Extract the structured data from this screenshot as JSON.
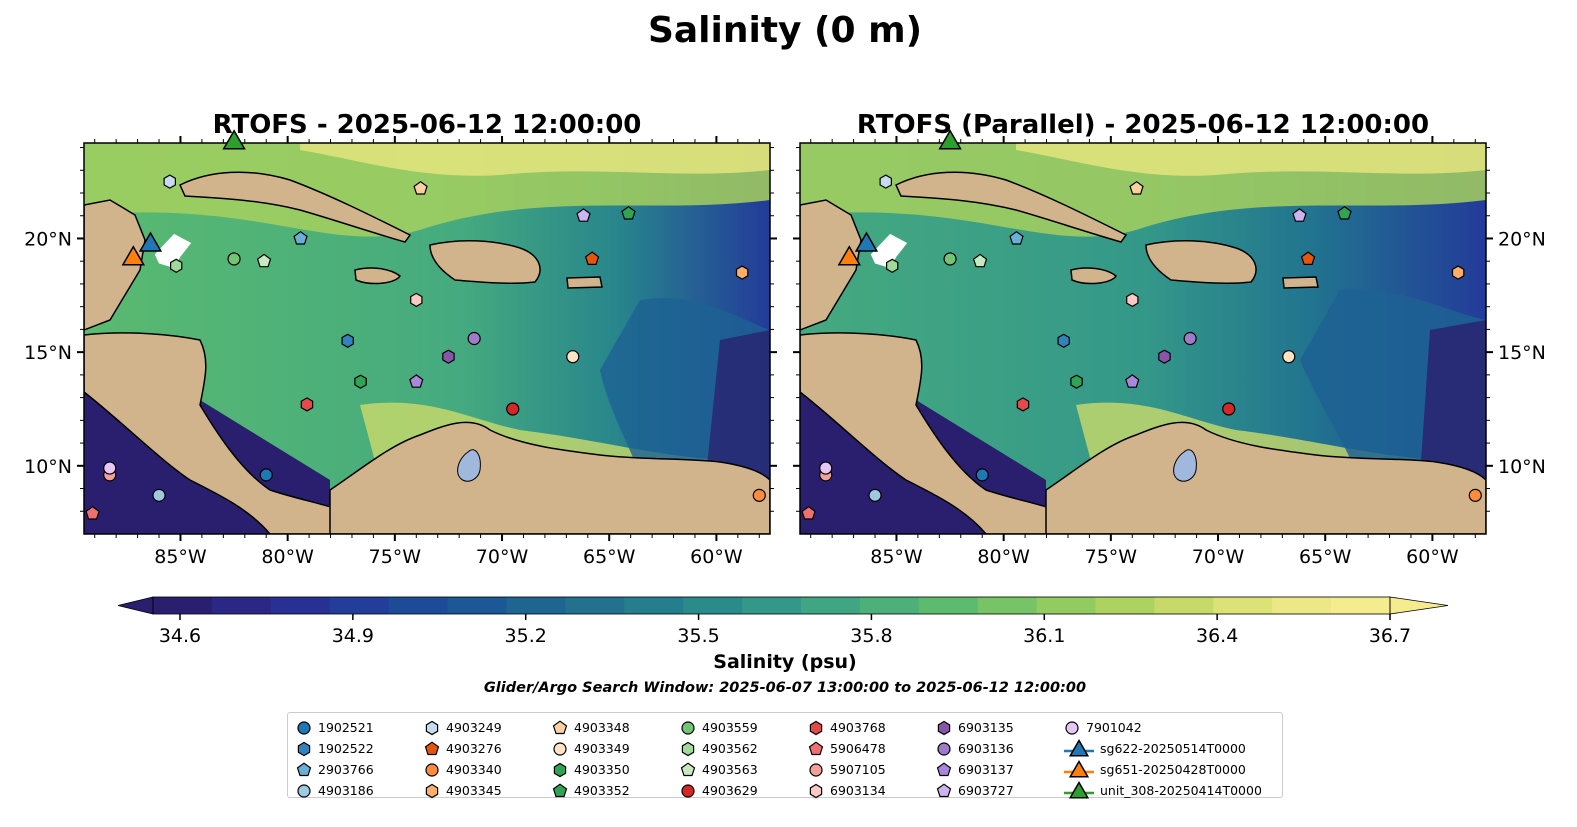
{
  "figure": {
    "title": "Salinity (0 m)",
    "left_panel_title": "RTOFS - 2025-06-12 12:00:00",
    "right_panel_title": "RTOFS (Parallel) - 2025-06-12 12:00:00",
    "colorbar_label": "Salinity (psu)",
    "search_window": "Glider/Argo Search Window: 2025-06-07 13:00:00 to 2025-06-12 12:00:00",
    "colorbar_ticks": [
      "34.6",
      "34.9",
      "35.2",
      "35.5",
      "35.8",
      "36.1",
      "36.4",
      "36.7"
    ],
    "lon_labels": [
      "85°W",
      "80°W",
      "75°W",
      "70°W",
      "65°W",
      "60°W"
    ],
    "lat_labels": [
      "20°N",
      "15°N",
      "10°N"
    ]
  },
  "colors": {
    "land": "#d2b48c",
    "lake": "#a0b8dc",
    "colormap": [
      "#2a1f6e",
      "#2b2a8e",
      "#233b9a",
      "#1c4f98",
      "#1d6193",
      "#21738f",
      "#27858c",
      "#349889",
      "#45aa7f",
      "#5aba70",
      "#7dc764",
      "#a6d05e",
      "#cbdb6a",
      "#e9e680",
      "#f5ec90"
    ]
  },
  "chart_data": {
    "type": "map",
    "variable": "Salinity",
    "units": "psu",
    "colorbar_range": [
      34.6,
      36.7
    ],
    "lon_range": [
      -89.5,
      -57.5
    ],
    "lat_range": [
      7,
      24.2
    ],
    "panels": [
      "RTOFS",
      "RTOFS (Parallel)"
    ],
    "observations": [
      {
        "id": "1902521",
        "marker": "circle",
        "color": "#1f77b4",
        "lon": -81,
        "lat": 9.6
      },
      {
        "id": "4903186",
        "marker": "circle",
        "color": "#9ecae1",
        "lon": -86,
        "lat": 8.7
      },
      {
        "id": "4903249",
        "marker": "hexagon",
        "color": "#c6dbef",
        "lon": -85.5,
        "lat": 22.5
      },
      {
        "id": "2903766",
        "marker": "pentagon",
        "color": "#6baed6",
        "lon": -79.4,
        "lat": 20
      },
      {
        "id": "1902522",
        "marker": "hexagon",
        "color": "#3182bd",
        "lon": -77.2,
        "lat": 15.5
      },
      {
        "id": "4903276",
        "marker": "pentagon",
        "color": "#e6550d",
        "lon": -65.8,
        "lat": 19.1
      },
      {
        "id": "4903340",
        "marker": "circle",
        "color": "#fd8d3c",
        "lon": -58,
        "lat": 8.7
      },
      {
        "id": "4903345",
        "marker": "hexagon",
        "color": "#fdae6b",
        "lon": -58.8,
        "lat": 18.5
      },
      {
        "id": "4903348",
        "marker": "pentagon",
        "color": "#fdd0a2",
        "lon": -73.8,
        "lat": 22.2
      },
      {
        "id": "4903349",
        "marker": "circle",
        "color": "#ffe4c4",
        "lon": -66.7,
        "lat": 14.8
      },
      {
        "id": "4903350",
        "marker": "hexagon",
        "color": "#31a354",
        "lon": -76.6,
        "lat": 13.7
      },
      {
        "id": "4903352",
        "marker": "pentagon",
        "color": "#31a354",
        "lon": -64.1,
        "lat": 21.1
      },
      {
        "id": "4903559",
        "marker": "circle",
        "color": "#74c476",
        "lon": -82.5,
        "lat": 19.1
      },
      {
        "id": "4903562",
        "marker": "hexagon",
        "color": "#a1d99b",
        "lon": -85.2,
        "lat": 18.8
      },
      {
        "id": "4903563",
        "marker": "pentagon",
        "color": "#c7e9c0",
        "lon": -81.1,
        "lat": 19
      },
      {
        "id": "4903629",
        "marker": "circle",
        "color": "#d62728",
        "lon": -69.5,
        "lat": 12.5
      },
      {
        "id": "4903768",
        "marker": "hexagon",
        "color": "#e34a4a",
        "lon": -79.1,
        "lat": 12.7
      },
      {
        "id": "5906478",
        "marker": "pentagon",
        "color": "#f07070",
        "lon": -89.1,
        "lat": 7.9
      },
      {
        "id": "5907105",
        "marker": "circle",
        "color": "#f4a09a",
        "lon": -88.3,
        "lat": 9.6
      },
      {
        "id": "6903134",
        "marker": "hexagon",
        "color": "#f9c9c3",
        "lon": -74,
        "lat": 17.3
      },
      {
        "id": "6903135",
        "marker": "hexagon",
        "color": "#8856a7",
        "lon": -72.5,
        "lat": 14.8
      },
      {
        "id": "6903136",
        "marker": "circle",
        "color": "#9e7cc9",
        "lon": -71.3,
        "lat": 15.6
      },
      {
        "id": "6903137",
        "marker": "pentagon",
        "color": "#a987dc",
        "lon": -74,
        "lat": 13.7
      },
      {
        "id": "6903727",
        "marker": "pentagon",
        "color": "#cbb4f0",
        "lon": -66.2,
        "lat": 21
      },
      {
        "id": "7901042",
        "marker": "circle",
        "color": "#e5c6f5",
        "lon": -88.3,
        "lat": 9.9
      },
      {
        "id": "sg622-20250514T0000",
        "marker": "triangle",
        "color": "#1f77b4",
        "lon": -86.4,
        "lat": 19.8
      },
      {
        "id": "sg651-20250428T0000",
        "marker": "triangle",
        "color": "#ff7f0e",
        "lon": -87.2,
        "lat": 19.2
      },
      {
        "id": "unit_308-20250414T0000",
        "marker": "triangle",
        "color": "#2ca02c",
        "lon": -82.5,
        "lat": 24.3
      }
    ]
  },
  "legend": {
    "items": [
      {
        "label": "1902521",
        "marker": "circle",
        "color": "#1f77b4"
      },
      {
        "label": "1902522",
        "marker": "hexagon",
        "color": "#3182bd"
      },
      {
        "label": "2903766",
        "marker": "pentagon",
        "color": "#6baed6"
      },
      {
        "label": "4903186",
        "marker": "circle",
        "color": "#9ecae1"
      },
      {
        "label": "4903249",
        "marker": "hexagon",
        "color": "#c6dbef"
      },
      {
        "label": "4903276",
        "marker": "pentagon",
        "color": "#e6550d"
      },
      {
        "label": "4903340",
        "marker": "circle",
        "color": "#fd8d3c"
      },
      {
        "label": "4903345",
        "marker": "hexagon",
        "color": "#fdae6b"
      },
      {
        "label": "4903348",
        "marker": "pentagon",
        "color": "#fdd0a2"
      },
      {
        "label": "4903349",
        "marker": "circle",
        "color": "#ffe4c4"
      },
      {
        "label": "4903350",
        "marker": "hexagon",
        "color": "#31a354"
      },
      {
        "label": "4903352",
        "marker": "pentagon",
        "color": "#31a354"
      },
      {
        "label": "4903559",
        "marker": "circle",
        "color": "#74c476"
      },
      {
        "label": "4903562",
        "marker": "hexagon",
        "color": "#a1d99b"
      },
      {
        "label": "4903563",
        "marker": "pentagon",
        "color": "#c7e9c0"
      },
      {
        "label": "4903629",
        "marker": "circle",
        "color": "#d62728"
      },
      {
        "label": "4903768",
        "marker": "hexagon",
        "color": "#e34a4a"
      },
      {
        "label": "5906478",
        "marker": "pentagon",
        "color": "#f07070"
      },
      {
        "label": "5907105",
        "marker": "circle",
        "color": "#f4a09a"
      },
      {
        "label": "6903134",
        "marker": "hexagon",
        "color": "#f9c9c3"
      },
      {
        "label": "6903135",
        "marker": "hexagon",
        "color": "#8856a7"
      },
      {
        "label": "6903136",
        "marker": "circle",
        "color": "#9e7cc9"
      },
      {
        "label": "6903137",
        "marker": "pentagon",
        "color": "#a987dc"
      },
      {
        "label": "6903727",
        "marker": "pentagon",
        "color": "#cbb4f0"
      },
      {
        "label": "7901042",
        "marker": "circle",
        "color": "#e5c6f5"
      },
      {
        "label": "sg622-20250514T0000",
        "marker": "triangle",
        "color": "#1f77b4"
      },
      {
        "label": "sg651-20250428T0000",
        "marker": "triangle",
        "color": "#ff7f0e"
      },
      {
        "label": "unit_308-20250414T0000",
        "marker": "triangle",
        "color": "#2ca02c"
      }
    ]
  }
}
